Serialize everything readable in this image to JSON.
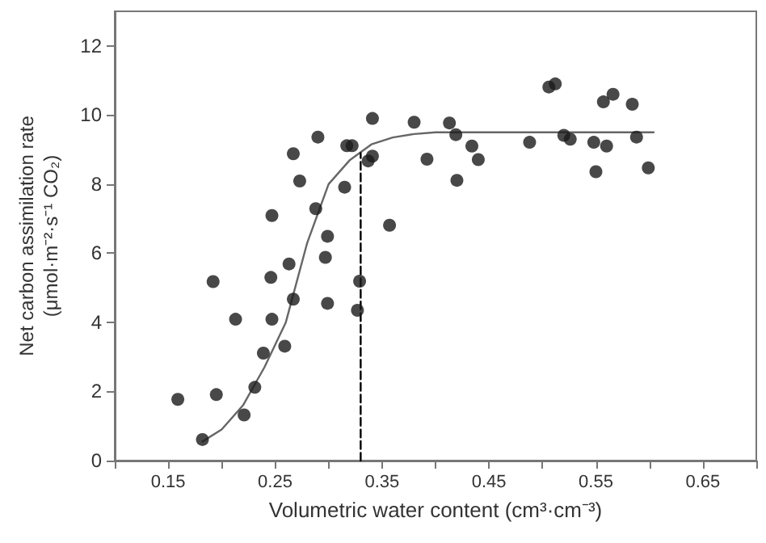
{
  "chart_data": {
    "type": "scatter",
    "xlabel": "Volumetric water content (cm³·cm⁻³)",
    "ylabel": "Net carbon assimilation rate\n(μmol·m⁻²·s⁻¹ CO₂)",
    "xlim": [
      0.1,
      0.7
    ],
    "xticks": [
      {
        "value": 0.1,
        "label": null
      },
      0.15,
      {
        "value": 0.2,
        "label": null
      },
      0.25,
      {
        "value": 0.3,
        "label": null
      },
      0.35,
      {
        "value": 0.4,
        "label": null
      },
      0.45,
      {
        "value": 0.5,
        "label": null
      },
      0.55,
      {
        "value": 0.6,
        "label": null
      },
      0.65,
      {
        "value": 0.7,
        "label": null
      }
    ],
    "ylim": [
      0,
      13
    ],
    "yticks": [
      0,
      2,
      4,
      6,
      8,
      10,
      12
    ],
    "grid": false,
    "marker": "circle",
    "series": [
      {
        "color": "#1a1a1a",
        "x": [
          0.159,
          0.182,
          0.192,
          0.195,
          0.213,
          0.221,
          0.231,
          0.239,
          0.247,
          0.246,
          0.247,
          0.259,
          0.263,
          0.267,
          0.267,
          0.273,
          0.288,
          0.29,
          0.299,
          0.297,
          0.299,
          0.315,
          0.317,
          0.322,
          0.327,
          0.329,
          0.337,
          0.341,
          0.341,
          0.357,
          0.38,
          0.392,
          0.413,
          0.419,
          0.42,
          0.434,
          0.44,
          0.488,
          0.506,
          0.512,
          0.52,
          0.526,
          0.548,
          0.55,
          0.557,
          0.56,
          0.566,
          0.584,
          0.588,
          0.599
        ],
        "values": [
          1.77,
          0.61,
          5.18,
          1.91,
          4.09,
          1.32,
          2.12,
          3.11,
          7.09,
          5.3,
          4.09,
          3.31,
          5.69,
          8.88,
          4.67,
          8.09,
          7.29,
          9.36,
          6.49,
          5.88,
          4.55,
          7.91,
          9.11,
          9.11,
          4.35,
          5.19,
          8.67,
          8.81,
          9.9,
          6.81,
          9.79,
          8.72,
          9.77,
          9.43,
          8.11,
          9.1,
          8.71,
          9.21,
          10.81,
          10.9,
          9.41,
          9.3,
          9.21,
          8.36,
          10.38,
          9.1,
          10.6,
          10.31,
          9.36,
          8.47
        ]
      },
      {
        "type": "line",
        "color": "#666666",
        "marker": "none",
        "line_style": "solid",
        "x": [
          0.182,
          0.2,
          0.22,
          0.24,
          0.26,
          0.28,
          0.3,
          0.32,
          0.34,
          0.36,
          0.38,
          0.4,
          0.45,
          0.5,
          0.55,
          0.604
        ],
        "values": [
          0.55,
          0.9,
          1.6,
          2.7,
          4.0,
          6.3,
          8.0,
          8.7,
          9.15,
          9.35,
          9.45,
          9.5,
          9.5,
          9.5,
          9.5,
          9.5
        ]
      },
      {
        "type": "line",
        "color": "#000000",
        "marker": "none",
        "line_style": "dashed",
        "x": [
          0.33,
          0.33
        ],
        "values": [
          0,
          8.9
        ]
      }
    ]
  }
}
